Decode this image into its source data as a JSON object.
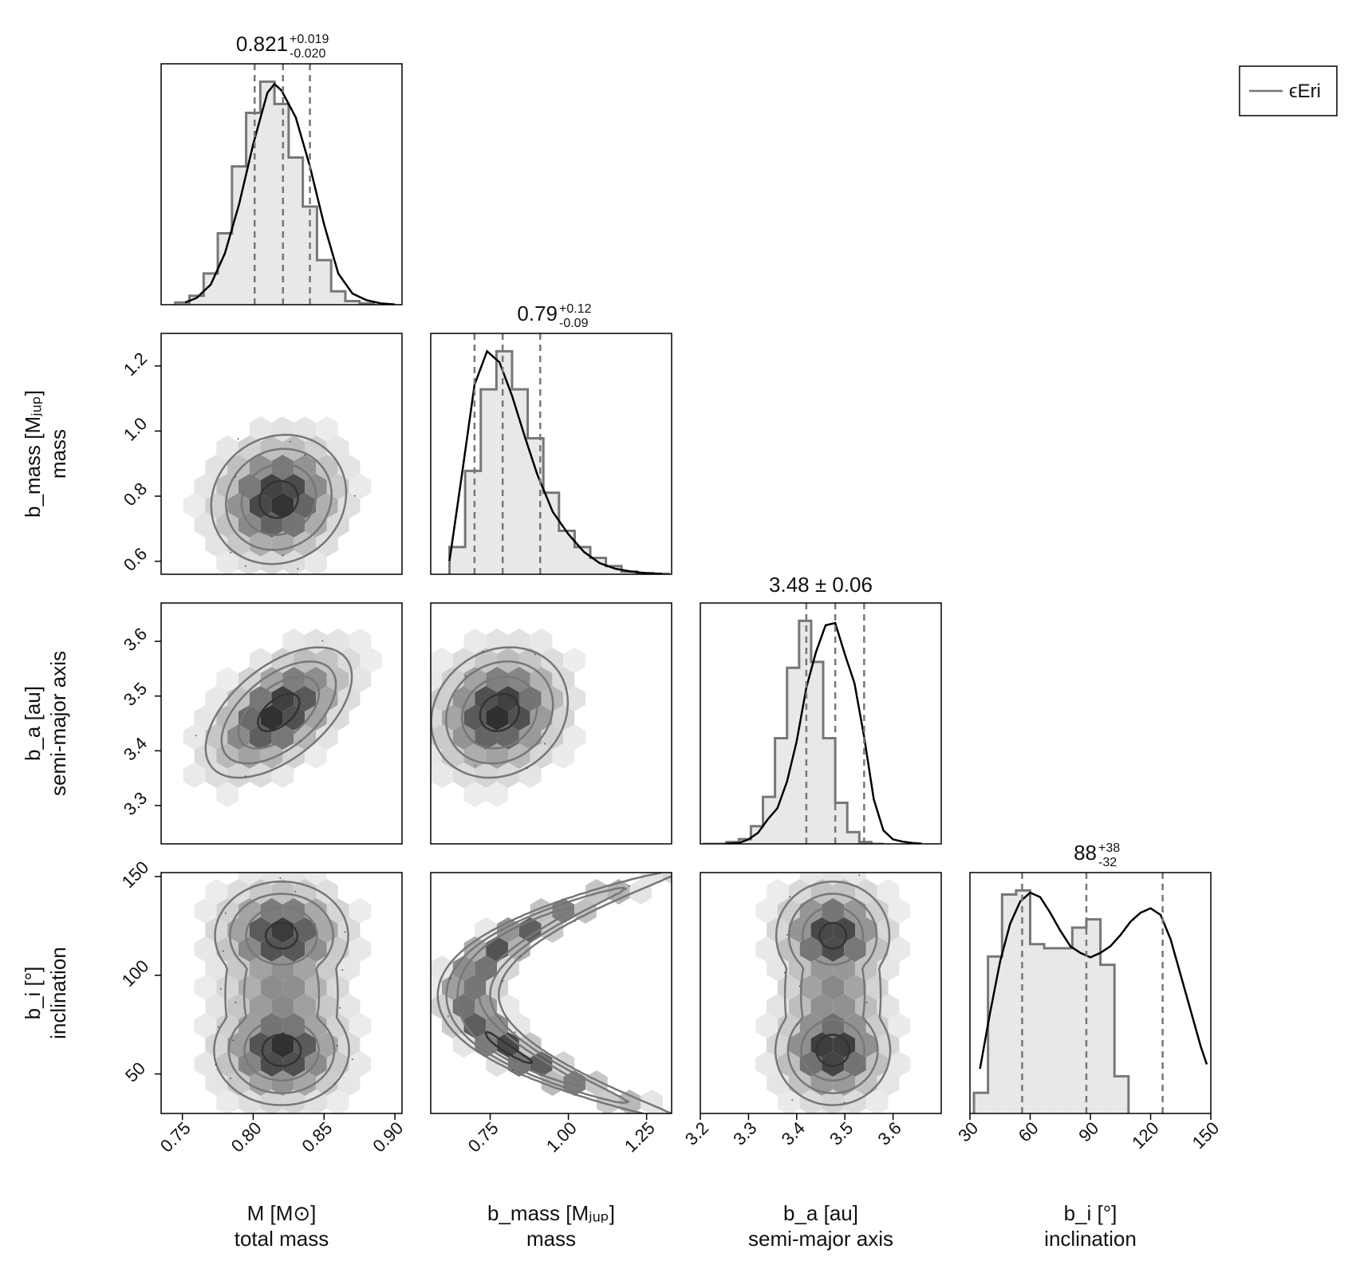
{
  "legend": {
    "label": "ϵEri",
    "position": "top-right"
  },
  "colors": {
    "hist_fill": "#e8e8e8",
    "hist_edge": "#777777",
    "kde": "#000000",
    "quantile": "#777777",
    "contour": "#777777",
    "axis": "#000000"
  },
  "chart_data": {
    "type": "corner",
    "params": [
      {
        "symbol": "M",
        "unit_label": "M [M⊙]",
        "description": "total mass",
        "range": [
          0.735,
          0.905
        ],
        "ticks": [
          0.75,
          0.8,
          0.85,
          0.9
        ],
        "tick_labels": [
          "0.75",
          "0.80",
          "0.85",
          "0.90"
        ],
        "bin_width": 0.01,
        "hist": [
          0.5,
          2,
          7,
          16,
          31,
          43,
          50,
          45,
          33,
          22,
          10,
          3,
          0.8,
          0.3
        ],
        "kde_x": [
          0.752,
          0.76,
          0.77,
          0.78,
          0.79,
          0.8,
          0.81,
          0.815,
          0.82,
          0.83,
          0.84,
          0.85,
          0.86,
          0.87,
          0.88,
          0.89,
          0.9
        ],
        "kde_y": [
          0.01,
          0.03,
          0.09,
          0.23,
          0.45,
          0.72,
          0.95,
          0.99,
          0.96,
          0.84,
          0.62,
          0.36,
          0.14,
          0.05,
          0.02,
          0.006,
          0.001
        ],
        "median": 0.821,
        "q_low": 0.801,
        "q_high": 0.84,
        "title_main": "0.821",
        "title_plus": "+0.019",
        "title_minus": "-0.020"
      },
      {
        "symbol": "b_mass",
        "unit_label": "b_mass [Mⱼᵤₚ]",
        "description": "mass",
        "range": [
          0.56,
          1.33
        ],
        "ticks": [
          0.75,
          1.0,
          1.25
        ],
        "tick_labels": [
          "0.75",
          "1.00",
          "1.25"
        ],
        "y_ticks": [
          0.6,
          0.8,
          1.0,
          1.2
        ],
        "y_tick_labels": [
          "0.6",
          "0.8",
          "1.0",
          "1.2"
        ],
        "y_range": [
          0.56,
          1.3
        ],
        "bin_width": 0.05,
        "hist": [
          5,
          19,
          34,
          41,
          34,
          25,
          15,
          8,
          5,
          3,
          1.5,
          0.5,
          0.2,
          0.1
        ],
        "kde_x": [
          0.62,
          0.66,
          0.7,
          0.74,
          0.78,
          0.82,
          0.86,
          0.9,
          0.95,
          1.0,
          1.05,
          1.1,
          1.15,
          1.2,
          1.25,
          1.3
        ],
        "kde_y": [
          0.06,
          0.45,
          0.85,
          1.0,
          0.95,
          0.8,
          0.62,
          0.45,
          0.28,
          0.18,
          0.1,
          0.05,
          0.025,
          0.012,
          0.005,
          0.002
        ],
        "median": 0.79,
        "q_low": 0.7,
        "q_high": 0.91,
        "title_main": "0.79",
        "title_plus": "+0.12",
        "title_minus": "-0.09"
      },
      {
        "symbol": "b_a",
        "unit_label": "b_a [au]",
        "description": "semi-major axis",
        "range": [
          3.2,
          3.7
        ],
        "ticks": [
          3.2,
          3.3,
          3.4,
          3.5,
          3.6
        ],
        "tick_labels": [
          "3.2",
          "3.3",
          "3.4",
          "3.5",
          "3.6"
        ],
        "y_ticks": [
          3.3,
          3.4,
          3.5,
          3.6
        ],
        "y_tick_labels": [
          "3.3",
          "3.4",
          "3.5",
          "3.6"
        ],
        "y_range": [
          3.23,
          3.67
        ],
        "bin_width": 0.025,
        "hist": [
          0,
          0,
          0.3,
          0.8,
          3,
          8,
          18,
          30,
          38,
          31,
          18,
          7,
          2,
          0.3,
          0
        ],
        "kde_x": [
          3.25,
          3.28,
          3.3,
          3.32,
          3.34,
          3.36,
          3.38,
          3.4,
          3.42,
          3.44,
          3.46,
          3.48,
          3.5,
          3.52,
          3.54,
          3.56,
          3.58,
          3.6,
          3.62,
          3.64,
          3.66
        ],
        "kde_y": [
          0.001,
          0.004,
          0.02,
          0.05,
          0.11,
          0.16,
          0.28,
          0.46,
          0.7,
          0.86,
          0.98,
          0.99,
          0.85,
          0.72,
          0.48,
          0.2,
          0.06,
          0.02,
          0.01,
          0.004,
          0.001
        ],
        "median": 3.48,
        "q_low": 3.42,
        "q_high": 3.54,
        "title_main": "3.48 ± 0.06",
        "title_plus": "",
        "title_minus": ""
      },
      {
        "symbol": "b_i",
        "unit_label": "b_i [°]",
        "description": "inclination",
        "range": [
          30,
          150
        ],
        "ticks": [
          30,
          60,
          90,
          120,
          150
        ],
        "tick_labels": [
          "30",
          "60",
          "90",
          "120",
          "150"
        ],
        "y_ticks": [
          50,
          100,
          150
        ],
        "y_tick_labels": [
          "50",
          "100",
          "150"
        ],
        "y_range": [
          30,
          152
        ],
        "bin_width": 7,
        "hist": [
          5,
          38,
          53,
          54,
          41,
          40,
          40,
          45,
          47,
          36,
          9
        ],
        "kde_x": [
          35,
          40,
          45,
          50,
          55,
          60,
          65,
          70,
          75,
          80,
          85,
          90,
          95,
          100,
          105,
          110,
          115,
          120,
          125,
          130,
          135,
          140,
          145,
          148
        ],
        "kde_y": [
          0.2,
          0.45,
          0.68,
          0.85,
          0.95,
          0.99,
          0.97,
          0.9,
          0.82,
          0.75,
          0.72,
          0.7,
          0.72,
          0.75,
          0.8,
          0.86,
          0.9,
          0.92,
          0.89,
          0.78,
          0.62,
          0.46,
          0.3,
          0.22
        ],
        "median": 88,
        "q_low": 56,
        "q_high": 126,
        "title_main": "88",
        "title_plus": "+38",
        "title_minus": "-32"
      }
    ],
    "pairs": [
      {
        "x": 0,
        "y": 1,
        "cx": 0.818,
        "cy": 0.79,
        "sx": 0.024,
        "sy": 0.1,
        "rho": 0.1,
        "shape": "gaussian"
      },
      {
        "x": 0,
        "y": 2,
        "cx": 0.818,
        "cy": 3.47,
        "sx": 0.026,
        "sy": 0.06,
        "rho": 0.55,
        "shape": "gaussian"
      },
      {
        "x": 1,
        "y": 2,
        "cx": 0.78,
        "cy": 3.47,
        "sx": 0.11,
        "sy": 0.06,
        "rho": 0.15,
        "shape": "gaussian"
      },
      {
        "x": 0,
        "y": 3,
        "cx": 0.82,
        "cy": 90,
        "sx": 0.024,
        "sy": 32,
        "rho": 0.0,
        "shape": "bimodal",
        "modes": [
          62,
          120
        ]
      },
      {
        "x": 1,
        "y": 3,
        "cx": 0.8,
        "cy": 90,
        "sx": 0.1,
        "sy": 32,
        "rho": 0.0,
        "shape": "crescent"
      },
      {
        "x": 2,
        "y": 3,
        "cx": 3.475,
        "cy": 90,
        "sx": 0.06,
        "sy": 32,
        "rho": 0.0,
        "shape": "bimodal",
        "modes": [
          62,
          120
        ]
      }
    ]
  }
}
